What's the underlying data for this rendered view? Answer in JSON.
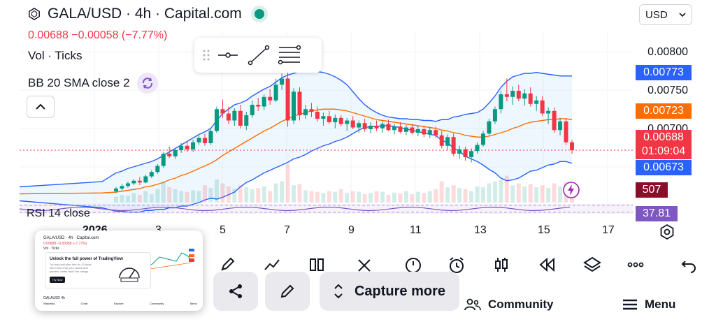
{
  "header": {
    "title": "GALA/USD · 4h · Capital.com",
    "price_line": "0.00688  −0.00058 (−7.77%)",
    "vol_label": "Vol · Ticks",
    "bb_label": "BB 20 SMA close 2",
    "currency": "USD"
  },
  "price_axis": {
    "labels": [
      "0.00800",
      "0.00750",
      "0.00700"
    ],
    "bb_upper": "0.00773",
    "bb_basis": "0.00723",
    "last_price": "0.00688",
    "countdown": "01:09:04",
    "bb_lower": "0.00673",
    "volume": "507",
    "rsi_value": "37.81"
  },
  "rsi_label": "RSI 14 close",
  "time_axis": [
    "2026",
    "3",
    "5",
    "7",
    "9",
    "11",
    "13",
    "15",
    "17"
  ],
  "bottom_nav": {
    "community": "Community",
    "menu": "Menu"
  },
  "screenshot_preview": {
    "title": "GALA/USD · 4h · Capital.com",
    "price": "0.00688 −0.00058 (−7.77%)",
    "vol": "Vol · Ticks",
    "popup_heading": "Unlock the full power of TradingView",
    "popup_text": "Try any paid plan free for 30 days. We'll hold onto your charts and presets, better track the ratings",
    "popup_button": "Try Now",
    "footer_symbol": "GALAUSD  4h",
    "nav": [
      "Watchlist",
      "Chart",
      "Explore",
      "Community",
      "Menu"
    ]
  },
  "capture": {
    "more_label": "Capture more"
  },
  "colors": {
    "up": "#089981",
    "down": "#f23645",
    "bb_band": "#2962ff",
    "bb_basis": "#ff6d00",
    "rsi": "#7e57c2"
  },
  "chart_data": {
    "type": "candlestick",
    "timeframe": "4h",
    "y_range": [
      0.00628,
      0.00812
    ],
    "x_ticks": [
      "2026",
      "3",
      "5",
      "7",
      "9",
      "11",
      "13",
      "15",
      "17"
    ],
    "candles": [
      [
        0.00641,
        0.00646,
        0.00639,
        0.00644
      ],
      [
        0.00644,
        0.00649,
        0.00642,
        0.00647
      ],
      [
        0.00647,
        0.00652,
        0.00645,
        0.0065
      ],
      [
        0.0065,
        0.00655,
        0.00648,
        0.00653
      ],
      [
        0.00653,
        0.00657,
        0.00648,
        0.00651
      ],
      [
        0.00651,
        0.0066,
        0.0065,
        0.00658
      ],
      [
        0.00658,
        0.00665,
        0.00656,
        0.00663
      ],
      [
        0.00663,
        0.00672,
        0.00661,
        0.0067
      ],
      [
        0.0067,
        0.00686,
        0.00668,
        0.00684
      ],
      [
        0.00684,
        0.00692,
        0.00679,
        0.00681
      ],
      [
        0.00681,
        0.0069,
        0.00678,
        0.00688
      ],
      [
        0.00688,
        0.00696,
        0.00685,
        0.00693
      ],
      [
        0.00693,
        0.00699,
        0.00686,
        0.00689
      ],
      [
        0.00689,
        0.007,
        0.00686,
        0.00697
      ],
      [
        0.00697,
        0.00705,
        0.00694,
        0.00702
      ],
      [
        0.00702,
        0.00707,
        0.00693,
        0.00696
      ],
      [
        0.00696,
        0.00712,
        0.00694,
        0.0071
      ],
      [
        0.0071,
        0.00738,
        0.00708,
        0.00735
      ],
      [
        0.00735,
        0.00746,
        0.00725,
        0.0073
      ],
      [
        0.0073,
        0.00738,
        0.00718,
        0.00722
      ],
      [
        0.00722,
        0.00736,
        0.00716,
        0.00733
      ],
      [
        0.00733,
        0.0074,
        0.00713,
        0.00716
      ],
      [
        0.00716,
        0.00732,
        0.00711,
        0.00728
      ],
      [
        0.00728,
        0.00745,
        0.00725,
        0.0074
      ],
      [
        0.0074,
        0.00748,
        0.00733,
        0.00738
      ],
      [
        0.00738,
        0.00752,
        0.00734,
        0.00749
      ],
      [
        0.00749,
        0.00758,
        0.0074,
        0.00745
      ],
      [
        0.00745,
        0.0077,
        0.00743,
        0.00763
      ],
      [
        0.00763,
        0.00776,
        0.00757,
        0.0077
      ],
      [
        0.0077,
        0.00781,
        0.00715,
        0.00722
      ],
      [
        0.00722,
        0.00759,
        0.00718,
        0.00755
      ],
      [
        0.00755,
        0.0076,
        0.00722,
        0.00728
      ],
      [
        0.00728,
        0.0074,
        0.00724,
        0.00735
      ],
      [
        0.00735,
        0.00742,
        0.00726,
        0.00732
      ],
      [
        0.00732,
        0.00738,
        0.00721,
        0.00724
      ],
      [
        0.00724,
        0.00731,
        0.00716,
        0.00727
      ],
      [
        0.00727,
        0.00733,
        0.00718,
        0.0072
      ],
      [
        0.0072,
        0.00729,
        0.00713,
        0.00725
      ],
      [
        0.00725,
        0.00728,
        0.00715,
        0.00718
      ],
      [
        0.00718,
        0.00725,
        0.0071,
        0.00722
      ],
      [
        0.00722,
        0.00727,
        0.00712,
        0.00714
      ],
      [
        0.00714,
        0.00722,
        0.00708,
        0.00719
      ],
      [
        0.00719,
        0.00724,
        0.00709,
        0.00712
      ],
      [
        0.00712,
        0.0072,
        0.00707,
        0.00716
      ],
      [
        0.00716,
        0.00722,
        0.0071,
        0.00713
      ],
      [
        0.00713,
        0.00721,
        0.00708,
        0.00718
      ],
      [
        0.00718,
        0.00723,
        0.0071,
        0.00711
      ],
      [
        0.00711,
        0.00718,
        0.00706,
        0.00715
      ],
      [
        0.00715,
        0.0072,
        0.00707,
        0.00709
      ],
      [
        0.00709,
        0.00717,
        0.00705,
        0.00714
      ],
      [
        0.00714,
        0.00718,
        0.00706,
        0.00708
      ],
      [
        0.00708,
        0.00716,
        0.00704,
        0.00712
      ],
      [
        0.00712,
        0.00716,
        0.00703,
        0.00706
      ],
      [
        0.00706,
        0.00714,
        0.00702,
        0.00711
      ],
      [
        0.00711,
        0.00715,
        0.00702,
        0.00705
      ],
      [
        0.00705,
        0.0071,
        0.0069,
        0.00693
      ],
      [
        0.00693,
        0.00706,
        0.00688,
        0.00703
      ],
      [
        0.00703,
        0.00707,
        0.00681,
        0.00684
      ],
      [
        0.00684,
        0.00693,
        0.00678,
        0.00689
      ],
      [
        0.00689,
        0.00692,
        0.00676,
        0.0068
      ],
      [
        0.0068,
        0.0069,
        0.00674,
        0.00687
      ],
      [
        0.00687,
        0.00697,
        0.00684,
        0.00694
      ],
      [
        0.00694,
        0.0071,
        0.00692,
        0.00707
      ],
      [
        0.00707,
        0.00724,
        0.00705,
        0.00721
      ],
      [
        0.00721,
        0.00738,
        0.00718,
        0.00735
      ],
      [
        0.00735,
        0.00756,
        0.0073,
        0.00752
      ],
      [
        0.00752,
        0.0077,
        0.00744,
        0.00749
      ],
      [
        0.00749,
        0.00761,
        0.0074,
        0.00756
      ],
      [
        0.00756,
        0.00763,
        0.00744,
        0.00747
      ],
      [
        0.00747,
        0.00758,
        0.00739,
        0.00753
      ],
      [
        0.00753,
        0.0076,
        0.00738,
        0.00741
      ],
      [
        0.00741,
        0.0075,
        0.00733,
        0.00745
      ],
      [
        0.00745,
        0.0075,
        0.00727,
        0.0073
      ],
      [
        0.0073,
        0.00737,
        0.00718,
        0.00733
      ],
      [
        0.00733,
        0.00737,
        0.00708,
        0.00711
      ],
      [
        0.00711,
        0.00725,
        0.00705,
        0.00721
      ],
      [
        0.00721,
        0.00724,
        0.00694,
        0.00697
      ],
      [
        0.00697,
        0.007,
        0.00684,
        0.00688
      ]
    ],
    "bb_upper": [
      0.00662,
      0.00664,
      0.00667,
      0.00669,
      0.00671,
      0.00673,
      0.00675,
      0.00678,
      0.00682,
      0.00686,
      0.0069,
      0.00694,
      0.00698,
      0.00702,
      0.00706,
      0.00709,
      0.00713,
      0.00722,
      0.0073,
      0.00735,
      0.0074,
      0.00742,
      0.00745,
      0.0075,
      0.00754,
      0.00758,
      0.00761,
      0.00766,
      0.00771,
      0.00774,
      0.00776,
      0.00778,
      0.00779,
      0.00779,
      0.00778,
      0.00777,
      0.00775,
      0.00772,
      0.00768,
      0.00763,
      0.00755,
      0.00747,
      0.0074,
      0.00735,
      0.00731,
      0.00728,
      0.00726,
      0.00725,
      0.00724,
      0.00724,
      0.00723,
      0.00723,
      0.00722,
      0.00722,
      0.00721,
      0.00723,
      0.00723,
      0.00726,
      0.00727,
      0.00729,
      0.0073,
      0.00731,
      0.00735,
      0.00742,
      0.0075,
      0.0076,
      0.00767,
      0.00772,
      0.00774,
      0.00776,
      0.00776,
      0.00777,
      0.00776,
      0.00775,
      0.00774,
      0.00773,
      0.00773,
      0.00773
    ],
    "bb_basis": [
      0.0064,
      0.00641,
      0.00642,
      0.00643,
      0.00644,
      0.00646,
      0.00647,
      0.00649,
      0.00651,
      0.00654,
      0.00656,
      0.00659,
      0.00661,
      0.00664,
      0.00667,
      0.0067,
      0.00673,
      0.00677,
      0.00682,
      0.00686,
      0.0069,
      0.00694,
      0.00698,
      0.00702,
      0.00706,
      0.0071,
      0.00713,
      0.00717,
      0.00721,
      0.00724,
      0.00727,
      0.00729,
      0.00731,
      0.00733,
      0.00734,
      0.00735,
      0.00735,
      0.00735,
      0.00734,
      0.00733,
      0.00731,
      0.00729,
      0.00727,
      0.00725,
      0.00723,
      0.00722,
      0.00721,
      0.0072,
      0.00719,
      0.00718,
      0.00717,
      0.00716,
      0.00715,
      0.00714,
      0.00713,
      0.00711,
      0.0071,
      0.00708,
      0.00707,
      0.00705,
      0.00704,
      0.00703,
      0.00703,
      0.00704,
      0.00706,
      0.00708,
      0.0071,
      0.00713,
      0.00715,
      0.00718,
      0.0072,
      0.00721,
      0.00722,
      0.00723,
      0.00723,
      0.00724,
      0.00724,
      0.00723
    ],
    "bb_lower": [
      0.00618,
      0.00618,
      0.00617,
      0.00617,
      0.00617,
      0.00619,
      0.00619,
      0.0062,
      0.0062,
      0.00622,
      0.00622,
      0.00624,
      0.00624,
      0.00626,
      0.00628,
      0.00631,
      0.00633,
      0.00632,
      0.00634,
      0.00637,
      0.0064,
      0.00646,
      0.00651,
      0.00654,
      0.00658,
      0.00662,
      0.00665,
      0.00668,
      0.00671,
      0.00674,
      0.00678,
      0.0068,
      0.00683,
      0.00687,
      0.0069,
      0.00693,
      0.00695,
      0.00698,
      0.007,
      0.00703,
      0.00707,
      0.00711,
      0.00714,
      0.00715,
      0.00715,
      0.00716,
      0.00716,
      0.00715,
      0.00714,
      0.00712,
      0.00711,
      0.00709,
      0.00708,
      0.00706,
      0.00705,
      0.00699,
      0.00697,
      0.0069,
      0.00687,
      0.00681,
      0.00678,
      0.00675,
      0.00671,
      0.00666,
      0.00662,
      0.00656,
      0.00653,
      0.00654,
      0.00656,
      0.0066,
      0.00664,
      0.00665,
      0.00668,
      0.00671,
      0.00672,
      0.00675,
      0.00675,
      0.00673
    ],
    "volume": [
      0.15,
      0.2,
      0.18,
      0.25,
      0.2,
      0.3,
      0.22,
      0.35,
      0.55,
      0.4,
      0.35,
      0.3,
      0.28,
      0.32,
      0.3,
      0.45,
      0.38,
      0.6,
      0.5,
      0.42,
      0.36,
      0.45,
      0.4,
      0.35,
      0.38,
      0.42,
      0.3,
      0.5,
      0.55,
      1.0,
      0.45,
      0.48,
      0.32,
      0.3,
      0.28,
      0.25,
      0.3,
      0.28,
      0.35,
      0.25,
      0.3,
      0.28,
      0.22,
      0.25,
      0.3,
      0.28,
      0.2,
      0.26,
      0.24,
      0.3,
      0.22,
      0.28,
      0.25,
      0.3,
      0.35,
      0.55,
      0.4,
      0.45,
      0.38,
      0.35,
      0.3,
      0.42,
      0.4,
      0.5,
      0.55,
      0.6,
      0.7,
      0.45,
      0.5,
      0.42,
      0.48,
      0.4,
      0.45,
      0.38,
      0.5,
      0.42,
      0.55,
      0.35
    ]
  }
}
